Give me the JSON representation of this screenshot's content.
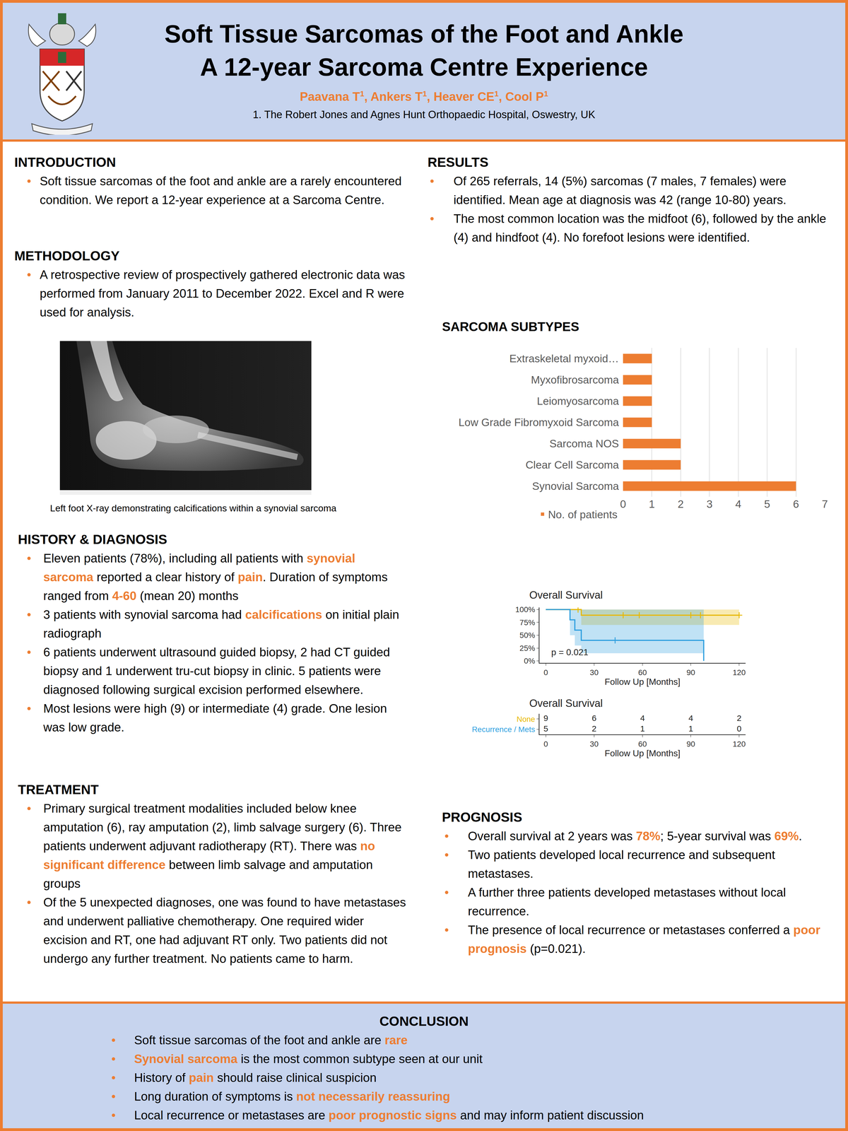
{
  "header": {
    "title_lines": [
      "Soft Tissue Sarcomas of the Foot and Ankle",
      "A 12-year Sarcoma Centre Experience"
    ],
    "authors": [
      {
        "name": "Paavana T",
        "affiliation": "1"
      },
      {
        "name": "Ankers T",
        "affiliation": "1"
      },
      {
        "name": "Heaver CE",
        "affiliation": "1"
      },
      {
        "name": "Cool P",
        "affiliation": "1"
      }
    ],
    "affiliation": "1. The Robert Jones and Agnes Hunt Orthopaedic Hospital, Oswestry, UK"
  },
  "sections": {
    "introduction": {
      "heading": "INTRODUCTION",
      "bullets": [
        [
          {
            "text": "Soft tissue sarcomas of the foot and ankle are a rarely encountered condition. We report a 12-year experience at a Sarcoma Centre."
          }
        ]
      ]
    },
    "methodology": {
      "heading": "METHODOLOGY",
      "bullets": [
        [
          {
            "text": "A retrospective review of prospectively gathered electronic data was performed from January 2011 to December 2022. Excel and R were used for analysis."
          }
        ]
      ]
    },
    "history": {
      "heading": "HISTORY & DIAGNOSIS",
      "bullets": [
        [
          {
            "text": "Eleven patients (78%), including all patients with "
          },
          {
            "text": "synovial sarcoma",
            "highlight": true
          },
          {
            "text": " reported a clear history of "
          },
          {
            "text": "pain",
            "highlight": true
          },
          {
            "text": ". Duration of symptoms ranged from "
          },
          {
            "text": "4-60",
            "highlight": true
          },
          {
            "text": " (mean 20) months"
          }
        ],
        [
          {
            "text": "3 patients with synovial sarcoma had "
          },
          {
            "text": "calcifications",
            "highlight": true
          },
          {
            "text": " on initial plain radiograph"
          }
        ],
        [
          {
            "text": "6 patients underwent ultrasound guided biopsy, 2 had CT guided biopsy and 1 underwent tru-cut biopsy in clinic. 5 patients were diagnosed following surgical excision performed elsewhere."
          }
        ],
        [
          {
            "text": "Most lesions were high (9) or intermediate (4) grade. One lesion was low grade."
          }
        ]
      ]
    },
    "treatment": {
      "heading": "TREATMENT",
      "bullets": [
        [
          {
            "text": "Primary surgical treatment modalities included below knee amputation (6), ray amputation (2), limb salvage surgery (6). Three patients underwent adjuvant radiotherapy (RT). There was "
          },
          {
            "text": "no significant difference",
            "highlight": true
          },
          {
            "text": " between limb salvage and amputation groups"
          }
        ],
        [
          {
            "text": "Of the 5 unexpected diagnoses, one was found to have metastases and underwent palliative chemotherapy. One required wider excision and RT, one had adjuvant RT only. Two patients did not undergo any further treatment. No patients came to harm."
          }
        ]
      ]
    },
    "results": {
      "heading": "RESULTS",
      "bullets": [
        [
          {
            "text": "Of 265 referrals, 14 (5%) sarcomas (7 males, 7 females) were identified. Mean age at diagnosis was 42 (range 10-80) years."
          }
        ],
        [
          {
            "text": "The most common location was the midfoot (6), followed by the ankle (4) and hindfoot (4). No forefoot lesions were identified."
          }
        ]
      ]
    },
    "prognosis": {
      "heading": "PROGNOSIS",
      "bullets": [
        [
          {
            "text": "Overall survival at 2 years was "
          },
          {
            "text": "78%",
            "highlight": true
          },
          {
            "text": "; 5-year survival was "
          },
          {
            "text": "69%",
            "highlight": true
          },
          {
            "text": "."
          }
        ],
        [
          {
            "text": "Two patients developed local recurrence and subsequent metastases."
          }
        ],
        [
          {
            "text": "A further three patients developed metastases without local recurrence."
          }
        ],
        [
          {
            "text": "The presence of local recurrence or metastases conferred a "
          },
          {
            "text": "poor prognosis",
            "highlight": true
          },
          {
            "text": " (p=0.021)."
          }
        ]
      ]
    },
    "conclusion": {
      "heading": "CONCLUSION",
      "bullets": [
        [
          {
            "text": "Soft tissue sarcomas of the foot and ankle are "
          },
          {
            "text": "rare",
            "highlight": true
          }
        ],
        [
          {
            "text": "Synovial sarcoma",
            "highlight": true
          },
          {
            "text": " is the most common subtype seen at our unit"
          }
        ],
        [
          {
            "text": "History of "
          },
          {
            "text": "pain",
            "highlight": true
          },
          {
            "text": " should raise clinical suspicion"
          }
        ],
        [
          {
            "text": "Long duration of symptoms is "
          },
          {
            "text": "not necessarily reassuring",
            "highlight": true
          }
        ],
        [
          {
            "text": "Local recurrence or metastases are "
          },
          {
            "text": "poor prognostic signs",
            "highlight": true
          },
          {
            "text": " and may inform patient discussion"
          }
        ]
      ]
    }
  },
  "figure": {
    "caption": "Left foot X-ray demonstrating calcifications within a synovial sarcoma"
  },
  "chart_data": [
    {
      "type": "bar",
      "title": "SARCOMA SUBTYPES",
      "orientation": "horizontal",
      "categories": [
        "Extraskeletal myxoid…",
        "Myxofibrosarcoma",
        "Leiomyosarcoma",
        "Low Grade Fibromyxoid Sarcoma",
        "Sarcoma NOS",
        "Clear Cell Sarcoma",
        "Synovial Sarcoma"
      ],
      "series": [
        {
          "name": "No. of patients",
          "color": "#ED7D31",
          "values": [
            1,
            1,
            1,
            1,
            2,
            2,
            6
          ]
        }
      ],
      "xlim": [
        0,
        7
      ],
      "xticks": [
        0,
        1,
        2,
        3,
        4,
        5,
        6,
        7
      ],
      "grid": true,
      "legend": "bottom left"
    },
    {
      "type": "line",
      "title": "Overall Survival",
      "x_label": "Follow Up [Months]",
      "xlim": [
        -4,
        124
      ],
      "xticks": [
        0,
        30,
        60,
        90,
        120
      ],
      "ylim": [
        -4,
        104
      ],
      "yticks": [
        {
          "value": 0,
          "label": "0%"
        },
        {
          "value": 25,
          "label": "25%"
        },
        {
          "value": 50,
          "label": "50%"
        },
        {
          "value": 75,
          "label": "75%"
        },
        {
          "value": 100,
          "label": "100%"
        }
      ],
      "annotations": [
        {
          "text": "p = 0.021",
          "x": 3,
          "y": 17
        }
      ],
      "series": [
        {
          "name": "None",
          "color": "#E7B800",
          "line_style": "step",
          "marker": "plus",
          "x": [
            0,
            22,
            120
          ],
          "values": [
            100,
            88.9,
            88.9
          ],
          "ci_lower": [
            100,
            70,
            70
          ],
          "ci_upper": [
            100,
            100,
            100
          ],
          "censored": {
            "x": [
              20,
              48,
              58,
              90,
              96,
              120
            ],
            "values": [
              100,
              88.9,
              88.9,
              88.9,
              88.9,
              88.9
            ]
          }
        },
        {
          "name": "Recurrence / Mets",
          "color": "#2E9FDF",
          "line_style": "step",
          "marker": "plus",
          "x": [
            0,
            15,
            18,
            22,
            98
          ],
          "values": [
            100,
            80,
            60,
            40,
            0
          ],
          "ci_lower": [
            100,
            50,
            30,
            15,
            0
          ],
          "ci_upper": [
            100,
            100,
            100,
            100,
            0
          ],
          "censored": {
            "x": [
              43
            ],
            "values": [
              40
            ]
          }
        }
      ]
    },
    {
      "type": "risk_table",
      "title": "Overall Survival",
      "x_label": "Follow Up [Months]",
      "xlim": [
        -4,
        124
      ],
      "xticks": [
        0,
        30,
        60,
        90,
        120
      ],
      "x": [
        0,
        30,
        60,
        90,
        120
      ],
      "data_labels": true,
      "series": [
        {
          "name": "None",
          "color": "#E7B800",
          "values": [
            9,
            6,
            4,
            4,
            2
          ]
        },
        {
          "name": "Recurrence / Mets",
          "color": "#2E9FDF",
          "values": [
            5,
            2,
            1,
            1,
            0
          ]
        }
      ]
    }
  ]
}
